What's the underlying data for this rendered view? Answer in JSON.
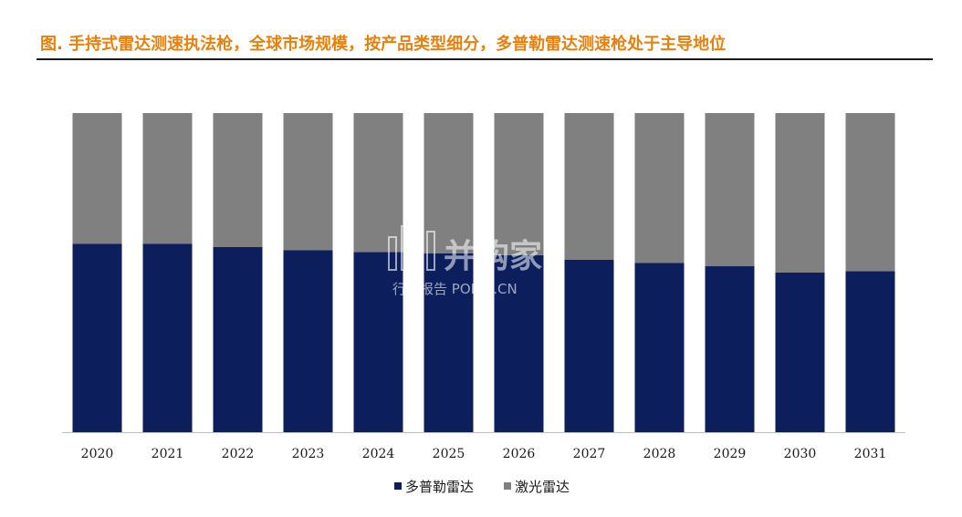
{
  "header": {
    "title": "图.  手持式雷达测速执法枪，全球市场规模，按产品类型细分，多普勒雷达测速枪处于主导地位"
  },
  "watermark": {
    "brand": "并购家",
    "subtitle": "行业报告 POIPO.CN"
  },
  "colors": {
    "doppler": "#0c1f5c",
    "laser": "#808080",
    "title": "#e8810c"
  },
  "chart_data": {
    "type": "bar",
    "stacked": true,
    "percent_stacked": true,
    "categories": [
      "2020",
      "2021",
      "2022",
      "2023",
      "2024",
      "2025",
      "2026",
      "2027",
      "2028",
      "2029",
      "2030",
      "2031"
    ],
    "series": [
      {
        "name": "多普勒雷达",
        "color": "#0c1f5c",
        "values": [
          59,
          59,
          58,
          57,
          56.5,
          56,
          55.5,
          54,
          53,
          52,
          50,
          50.5
        ]
      },
      {
        "name": "激光雷达",
        "color": "#808080",
        "values": [
          41,
          41,
          42,
          43,
          43.5,
          44,
          44.5,
          46,
          47,
          48,
          50,
          49.5
        ]
      }
    ],
    "ylim": [
      0,
      100
    ],
    "grid": false,
    "legend_position": "bottom-center"
  }
}
